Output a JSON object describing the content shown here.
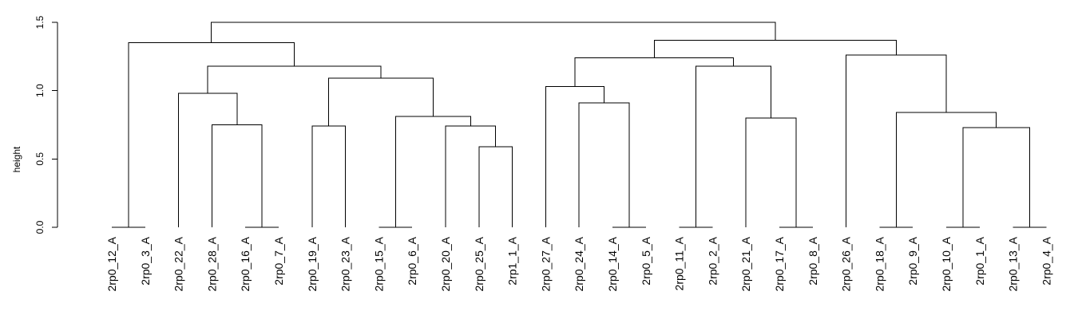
{
  "chart_data": {
    "type": "dendrogram",
    "title": "",
    "xlabel": "",
    "ylabel": "height",
    "ylim": [
      0,
      1.5
    ],
    "yticks": [
      "0.0",
      "0.5",
      "1.0",
      "1.5"
    ],
    "grid": false,
    "leaves": [
      "2rp0_12_A",
      "2rp0_3_A",
      "2rp0_22_A",
      "2rp0_28_A",
      "2rp0_16_A",
      "2rp0_7_A",
      "2rp0_19_A",
      "2rp0_23_A",
      "2rp0_15_A",
      "2rp0_6_A",
      "2rp0_20_A",
      "2rp0_25_A",
      "2rp1_1_A",
      "2rp0_27_A",
      "2rp0_24_A",
      "2rp0_14_A",
      "2rp0_5_A",
      "2rp0_11_A",
      "2rp0_2_A",
      "2rp0_21_A",
      "2rp0_17_A",
      "2rp0_8_A",
      "2rp0_26_A",
      "2rp0_18_A",
      "2rp0_9_A",
      "2rp0_10_A",
      "2rp0_1_A",
      "2rp0_13_A",
      "2rp0_4_A"
    ],
    "merges": [
      {
        "left": 0,
        "right": 1,
        "height": 0.0
      },
      {
        "left": 4,
        "right": 5,
        "height": 0.0
      },
      {
        "left": 8,
        "right": 9,
        "height": 0.0
      },
      {
        "left": 15,
        "right": 16,
        "height": 0.0
      },
      {
        "left": 17,
        "right": 18,
        "height": 0.0
      },
      {
        "left": 20,
        "right": 21,
        "height": 0.0
      },
      {
        "left": 23,
        "right": 24,
        "height": 0.0
      },
      {
        "left": 25,
        "right": 26,
        "height": 0.0
      },
      {
        "left": 27,
        "right": 28,
        "height": 0.0
      },
      {
        "left": 11,
        "right": 12,
        "height": 0.59
      },
      {
        "left": 10,
        "right": "m9",
        "height": 0.74
      },
      {
        "left": 6,
        "right": 7,
        "height": 0.74
      },
      {
        "left": "m7",
        "right": "m8",
        "height": 0.73
      },
      {
        "left": 3,
        "right": "m1",
        "height": 0.75
      },
      {
        "left": 19,
        "right": "m5",
        "height": 0.8
      },
      {
        "left": "m2",
        "right": "m10",
        "height": 0.81
      },
      {
        "left": "m6",
        "right": "m12",
        "height": 0.84
      },
      {
        "left": 14,
        "right": "m3",
        "height": 0.91
      },
      {
        "left": 2,
        "right": "m13",
        "height": 0.98
      },
      {
        "left": 13,
        "right": "m17",
        "height": 1.03
      },
      {
        "left": "m11",
        "right": "m15",
        "height": 1.09
      },
      {
        "left": "m4",
        "right": "m14",
        "height": 1.18
      },
      {
        "left": "m18",
        "right": "m20",
        "height": 1.18
      },
      {
        "left": "m19",
        "right": "m21",
        "height": 1.24
      },
      {
        "left": 22,
        "right": "m16",
        "height": 1.26
      },
      {
        "left": "m0",
        "right": "m22",
        "height": 1.35
      },
      {
        "left": "m23",
        "right": "m24",
        "height": 1.37
      },
      {
        "left": "m25",
        "right": "m26",
        "height": 1.5
      }
    ]
  }
}
